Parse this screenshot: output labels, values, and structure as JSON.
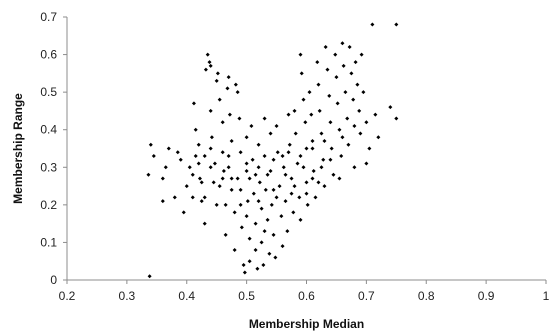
{
  "chart_data": {
    "type": "scatter",
    "title": "",
    "xlabel": "Membership Median",
    "ylabel": "Membership Range",
    "xlim": [
      0.2,
      1.0
    ],
    "ylim": [
      0,
      0.7
    ],
    "x_ticks": [
      0.2,
      0.3,
      0.4,
      0.5,
      0.6,
      0.7,
      0.8,
      0.9,
      1.0
    ],
    "x_tick_labels": [
      "0.2",
      "0.3",
      "0.4",
      "0.5",
      "0.6",
      "0.7",
      "0.8",
      "0.9",
      "1"
    ],
    "y_ticks": [
      0,
      0.1,
      0.2,
      0.3,
      0.4,
      0.5,
      0.6,
      0.7
    ],
    "y_tick_labels": [
      "0",
      "0.1",
      "0.2",
      "0.3",
      "0.4",
      "0.5",
      "0.6",
      "0.7"
    ],
    "grid": false,
    "legend": "none",
    "marker": "diamond",
    "color": "#000000",
    "series": [
      {
        "values": [
          [
            0.338,
            0.01
          ],
          [
            0.336,
            0.28
          ],
          [
            0.34,
            0.36
          ],
          [
            0.345,
            0.33
          ],
          [
            0.36,
            0.27
          ],
          [
            0.365,
            0.3
          ],
          [
            0.36,
            0.21
          ],
          [
            0.38,
            0.22
          ],
          [
            0.37,
            0.35
          ],
          [
            0.385,
            0.34
          ],
          [
            0.39,
            0.32
          ],
          [
            0.395,
            0.18
          ],
          [
            0.4,
            0.25
          ],
          [
            0.405,
            0.3
          ],
          [
            0.41,
            0.28
          ],
          [
            0.41,
            0.22
          ],
          [
            0.412,
            0.47
          ],
          [
            0.415,
            0.4
          ],
          [
            0.42,
            0.36
          ],
          [
            0.42,
            0.31
          ],
          [
            0.422,
            0.27
          ],
          [
            0.425,
            0.21
          ],
          [
            0.43,
            0.15
          ],
          [
            0.43,
            0.33
          ],
          [
            0.432,
            0.56
          ],
          [
            0.435,
            0.6
          ],
          [
            0.438,
            0.58
          ],
          [
            0.44,
            0.57
          ],
          [
            0.44,
            0.45
          ],
          [
            0.442,
            0.38
          ],
          [
            0.445,
            0.26
          ],
          [
            0.447,
            0.31
          ],
          [
            0.45,
            0.53
          ],
          [
            0.452,
            0.55
          ],
          [
            0.455,
            0.48
          ],
          [
            0.46,
            0.42
          ],
          [
            0.46,
            0.34
          ],
          [
            0.462,
            0.29
          ],
          [
            0.465,
            0.2
          ],
          [
            0.465,
            0.12
          ],
          [
            0.468,
            0.51
          ],
          [
            0.47,
            0.54
          ],
          [
            0.472,
            0.44
          ],
          [
            0.475,
            0.37
          ],
          [
            0.475,
            0.27
          ],
          [
            0.48,
            0.18
          ],
          [
            0.48,
            0.08
          ],
          [
            0.482,
            0.52
          ],
          [
            0.485,
            0.5
          ],
          [
            0.488,
            0.43
          ],
          [
            0.49,
            0.34
          ],
          [
            0.49,
            0.24
          ],
          [
            0.492,
            0.14
          ],
          [
            0.495,
            0.04
          ],
          [
            0.497,
            0.02
          ],
          [
            0.5,
            0.38
          ],
          [
            0.5,
            0.29
          ],
          [
            0.502,
            0.21
          ],
          [
            0.505,
            0.11
          ],
          [
            0.505,
            0.05
          ],
          [
            0.508,
            0.41
          ],
          [
            0.51,
            0.32
          ],
          [
            0.512,
            0.23
          ],
          [
            0.515,
            0.15
          ],
          [
            0.515,
            0.08
          ],
          [
            0.518,
            0.03
          ],
          [
            0.52,
            0.36
          ],
          [
            0.522,
            0.26
          ],
          [
            0.525,
            0.19
          ],
          [
            0.525,
            0.1
          ],
          [
            0.528,
            0.04
          ],
          [
            0.53,
            0.43
          ],
          [
            0.53,
            0.33
          ],
          [
            0.532,
            0.24
          ],
          [
            0.535,
            0.16
          ],
          [
            0.538,
            0.07
          ],
          [
            0.54,
            0.39
          ],
          [
            0.54,
            0.29
          ],
          [
            0.542,
            0.2
          ],
          [
            0.545,
            0.12
          ],
          [
            0.548,
            0.06
          ],
          [
            0.55,
            0.41
          ],
          [
            0.552,
            0.34
          ],
          [
            0.555,
            0.25
          ],
          [
            0.558,
            0.17
          ],
          [
            0.56,
            0.09
          ],
          [
            0.562,
            0.3
          ],
          [
            0.565,
            0.21
          ],
          [
            0.568,
            0.13
          ],
          [
            0.57,
            0.44
          ],
          [
            0.572,
            0.36
          ],
          [
            0.575,
            0.27
          ],
          [
            0.578,
            0.18
          ],
          [
            0.58,
            0.45
          ],
          [
            0.582,
            0.39
          ],
          [
            0.585,
            0.31
          ],
          [
            0.588,
            0.22
          ],
          [
            0.59,
            0.16
          ],
          [
            0.59,
            0.6
          ],
          [
            0.592,
            0.55
          ],
          [
            0.595,
            0.48
          ],
          [
            0.598,
            0.42
          ],
          [
            0.6,
            0.35
          ],
          [
            0.6,
            0.26
          ],
          [
            0.602,
            0.2
          ],
          [
            0.605,
            0.5
          ],
          [
            0.608,
            0.44
          ],
          [
            0.61,
            0.37
          ],
          [
            0.612,
            0.29
          ],
          [
            0.615,
            0.22
          ],
          [
            0.618,
            0.58
          ],
          [
            0.62,
            0.52
          ],
          [
            0.622,
            0.45
          ],
          [
            0.625,
            0.39
          ],
          [
            0.628,
            0.32
          ],
          [
            0.63,
            0.25
          ],
          [
            0.632,
            0.62
          ],
          [
            0.635,
            0.56
          ],
          [
            0.638,
            0.49
          ],
          [
            0.64,
            0.42
          ],
          [
            0.642,
            0.35
          ],
          [
            0.645,
            0.28
          ],
          [
            0.648,
            0.6
          ],
          [
            0.65,
            0.54
          ],
          [
            0.652,
            0.47
          ],
          [
            0.655,
            0.4
          ],
          [
            0.658,
            0.33
          ],
          [
            0.66,
            0.63
          ],
          [
            0.662,
            0.57
          ],
          [
            0.665,
            0.5
          ],
          [
            0.668,
            0.43
          ],
          [
            0.67,
            0.36
          ],
          [
            0.672,
            0.62
          ],
          [
            0.675,
            0.55
          ],
          [
            0.678,
            0.48
          ],
          [
            0.68,
            0.41
          ],
          [
            0.682,
            0.58
          ],
          [
            0.685,
            0.52
          ],
          [
            0.688,
            0.45
          ],
          [
            0.69,
            0.39
          ],
          [
            0.692,
            0.6
          ],
          [
            0.695,
            0.5
          ],
          [
            0.7,
            0.42
          ],
          [
            0.705,
            0.35
          ],
          [
            0.71,
            0.68
          ],
          [
            0.715,
            0.44
          ],
          [
            0.72,
            0.38
          ],
          [
            0.74,
            0.46
          ],
          [
            0.75,
            0.68
          ],
          [
            0.75,
            0.43
          ],
          [
            0.43,
            0.22
          ],
          [
            0.455,
            0.25
          ],
          [
            0.47,
            0.3
          ],
          [
            0.485,
            0.27
          ],
          [
            0.5,
            0.17
          ],
          [
            0.515,
            0.28
          ],
          [
            0.53,
            0.13
          ],
          [
            0.545,
            0.24
          ],
          [
            0.56,
            0.33
          ],
          [
            0.575,
            0.23
          ],
          [
            0.595,
            0.3
          ],
          [
            0.61,
            0.27
          ],
          [
            0.625,
            0.3
          ],
          [
            0.64,
            0.32
          ],
          [
            0.415,
            0.33
          ],
          [
            0.425,
            0.26
          ],
          [
            0.44,
            0.3
          ],
          [
            0.45,
            0.2
          ],
          [
            0.46,
            0.27
          ],
          [
            0.475,
            0.24
          ],
          [
            0.49,
            0.2
          ],
          [
            0.505,
            0.27
          ],
          [
            0.52,
            0.21
          ],
          [
            0.535,
            0.28
          ],
          [
            0.55,
            0.22
          ],
          [
            0.565,
            0.28
          ],
          [
            0.58,
            0.25
          ],
          [
            0.6,
            0.23
          ],
          [
            0.62,
            0.26
          ],
          [
            0.655,
            0.27
          ],
          [
            0.44,
            0.35
          ],
          [
            0.47,
            0.33
          ],
          [
            0.5,
            0.31
          ],
          [
            0.52,
            0.3
          ],
          [
            0.545,
            0.32
          ],
          [
            0.57,
            0.34
          ],
          [
            0.59,
            0.33
          ],
          [
            0.61,
            0.35
          ],
          [
            0.63,
            0.37
          ],
          [
            0.66,
            0.38
          ],
          [
            0.68,
            0.3
          ],
          [
            0.7,
            0.31
          ]
        ]
      }
    ]
  }
}
